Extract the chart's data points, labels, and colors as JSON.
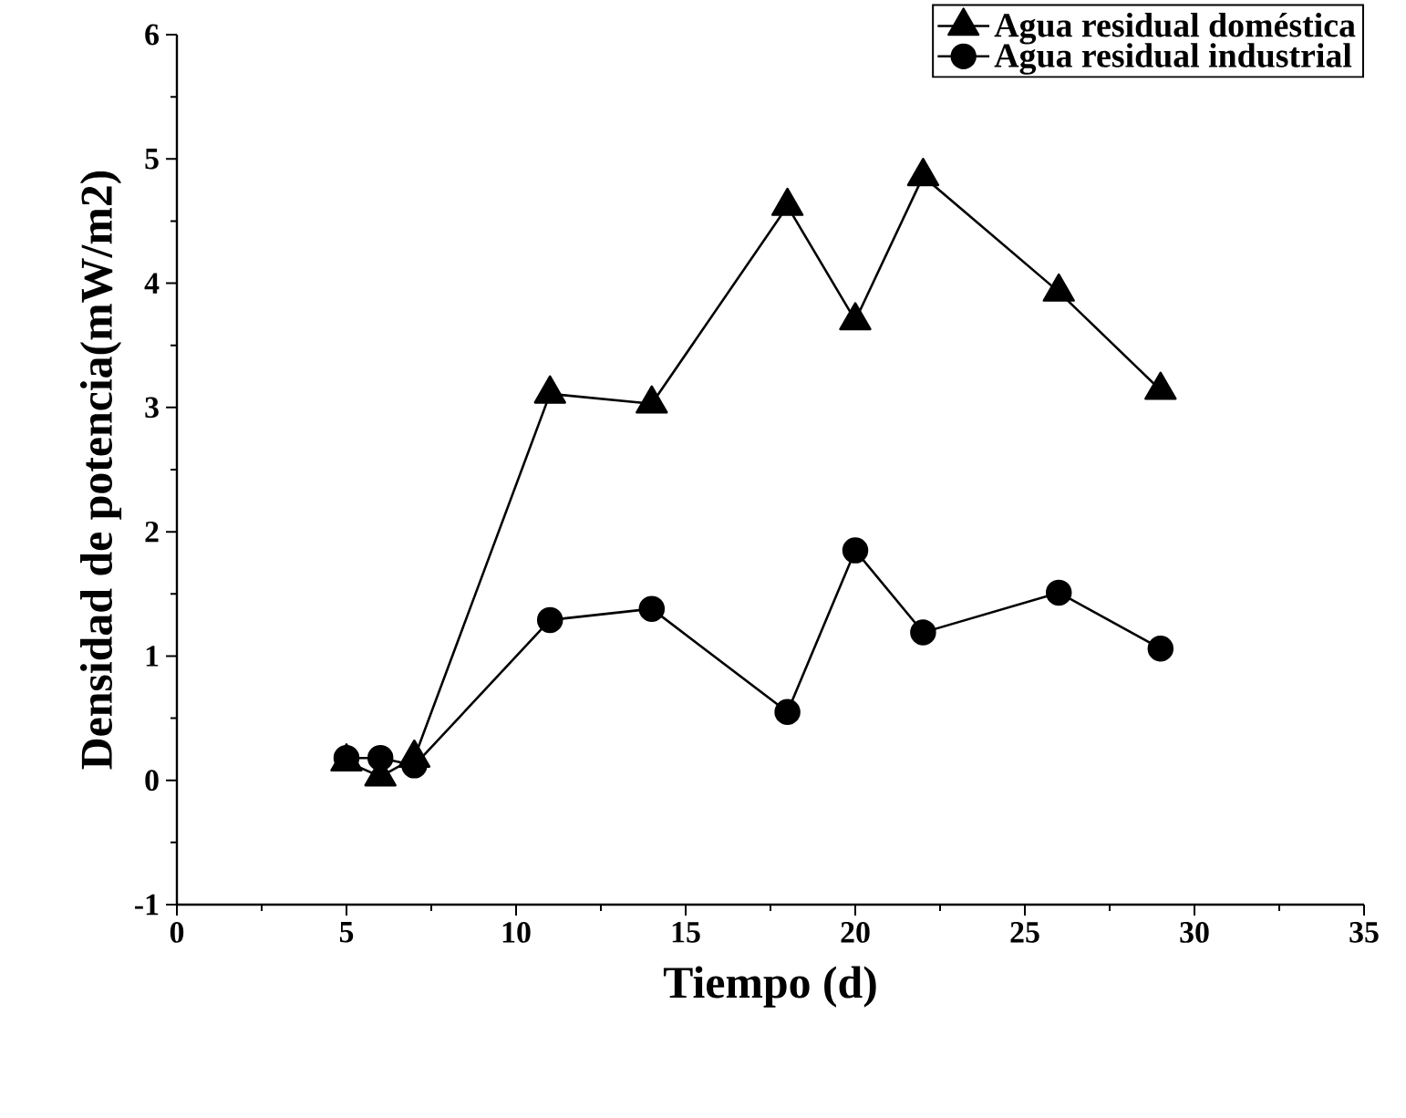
{
  "chart_data": {
    "type": "line",
    "xlabel": "Tiempo (d)",
    "ylabel": "Densidad de potencia(mW/m2)",
    "xlim": [
      0,
      35
    ],
    "xticks": [
      0,
      5,
      10,
      15,
      20,
      25,
      30,
      35
    ],
    "ylim": [
      -1,
      6
    ],
    "yticks": [
      -1,
      0,
      1,
      2,
      3,
      4,
      5,
      6
    ],
    "grid": false,
    "legend": "top right",
    "line_style": "solid",
    "series": [
      {
        "name": "Agua residual doméstica",
        "color": "#000000",
        "marker": "triangle",
        "x": [
          5,
          6,
          7,
          11,
          14,
          18,
          20,
          22,
          26,
          29
        ],
        "values": [
          0.15,
          0.03,
          0.18,
          3.11,
          3.03,
          4.62,
          3.7,
          4.86,
          3.93,
          3.14
        ]
      },
      {
        "name": "Agua residual industrial",
        "color": "#000000",
        "marker": "circle",
        "x": [
          5,
          6,
          7,
          11,
          14,
          18,
          20,
          22,
          26,
          29
        ],
        "values": [
          0.18,
          0.18,
          0.12,
          1.29,
          1.38,
          0.55,
          1.85,
          1.19,
          1.51,
          1.06
        ]
      }
    ]
  }
}
